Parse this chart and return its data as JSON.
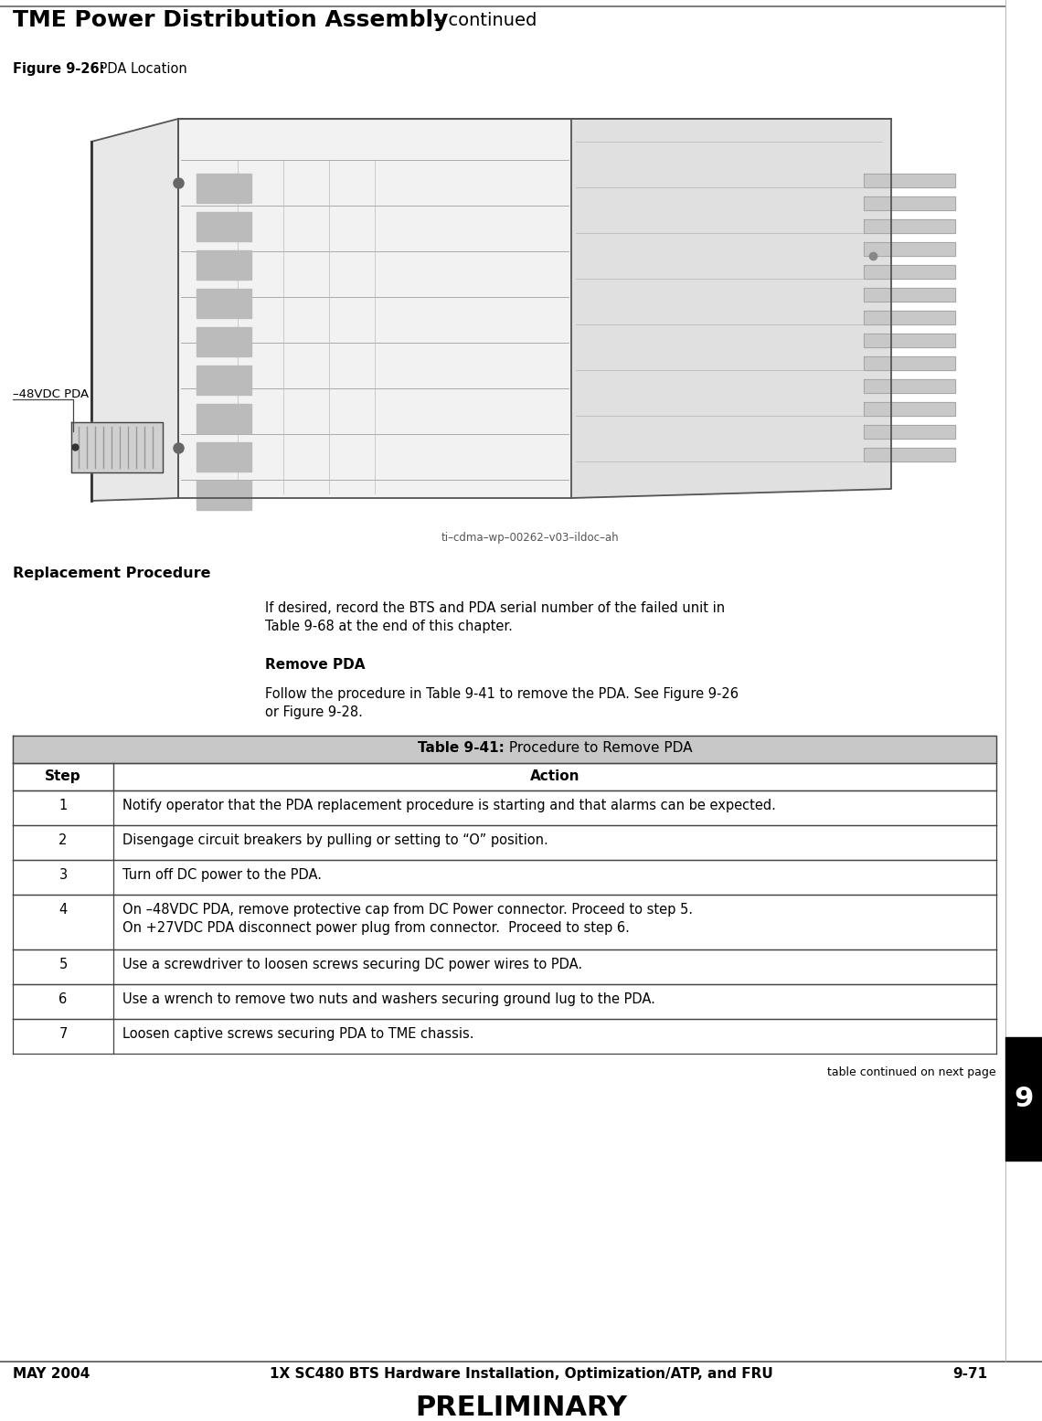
{
  "page_bg": "#ffffff",
  "header_title_bold": "TME Power Distribution Assembly",
  "header_title_normal": " – continued",
  "figure_label_bold": "Figure 9-26:",
  "figure_label_normal": " PDA Location",
  "figure_caption_code": "ti–cdma–wp–00262–v03–ildoc–ah",
  "label_48vdc": "–48VDC PDA",
  "replacement_heading": "Replacement Procedure",
  "intro_text_line1": "If desired, record the BTS and PDA serial number of the failed unit in",
  "intro_text_line2": "Table 9-68 at the end of this chapter.",
  "remove_pda_heading": "Remove PDA",
  "remove_pda_line1": "Follow the procedure in Table 9-41 to remove the PDA. See Figure 9-26",
  "remove_pda_line2": "or Figure 9-28.",
  "table_title_bold": "Table 9-41:",
  "table_title_normal": " Procedure to Remove PDA",
  "table_col1_header": "Step",
  "table_col2_header": "Action",
  "table_rows": [
    {
      "step": "1",
      "action_lines": [
        "Notify operator that the PDA replacement procedure is starting and that alarms can be expected."
      ]
    },
    {
      "step": "2",
      "action_lines": [
        "Disengage circuit breakers by pulling or setting to “O” position."
      ]
    },
    {
      "step": "3",
      "action_lines": [
        "Turn off DC power to the PDA."
      ]
    },
    {
      "step": "4",
      "action_lines": [
        "On –48VDC PDA, remove protective cap from DC Power connector. Proceed to step 5.",
        "On +27VDC PDA disconnect power plug from connector.  Proceed to step 6."
      ]
    },
    {
      "step": "5",
      "action_lines": [
        "Use a screwdriver to loosen screws securing DC power wires to PDA."
      ]
    },
    {
      "step": "6",
      "action_lines": [
        "Use a wrench to remove two nuts and washers securing ground lug to the PDA."
      ]
    },
    {
      "step": "7",
      "action_lines": [
        "Loosen captive screws securing PDA to TME chassis."
      ]
    }
  ],
  "table_continued": "table continued on next page",
  "footer_left": "MAY 2004",
  "footer_center": "1X SC480 BTS Hardware Installation, Optimization/ATP, and FRU",
  "footer_right": "9-71",
  "footer_preliminary": "PRELIMINARY",
  "sidebar_number": "9"
}
